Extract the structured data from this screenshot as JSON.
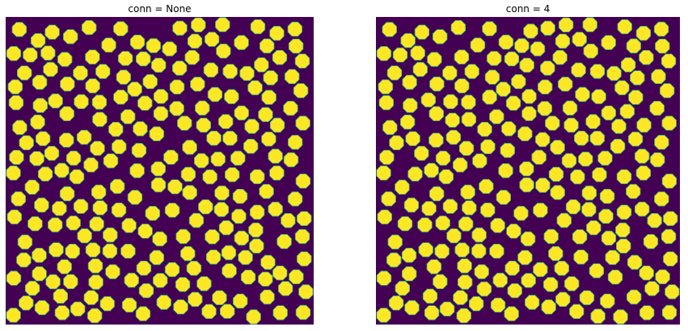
{
  "panels": [
    {
      "title": "conn = None"
    },
    {
      "title": "conn = 4"
    }
  ],
  "colors": {
    "background": "#440154",
    "disk_fill": "#fde725",
    "disk_edge": "#35b779"
  }
}
